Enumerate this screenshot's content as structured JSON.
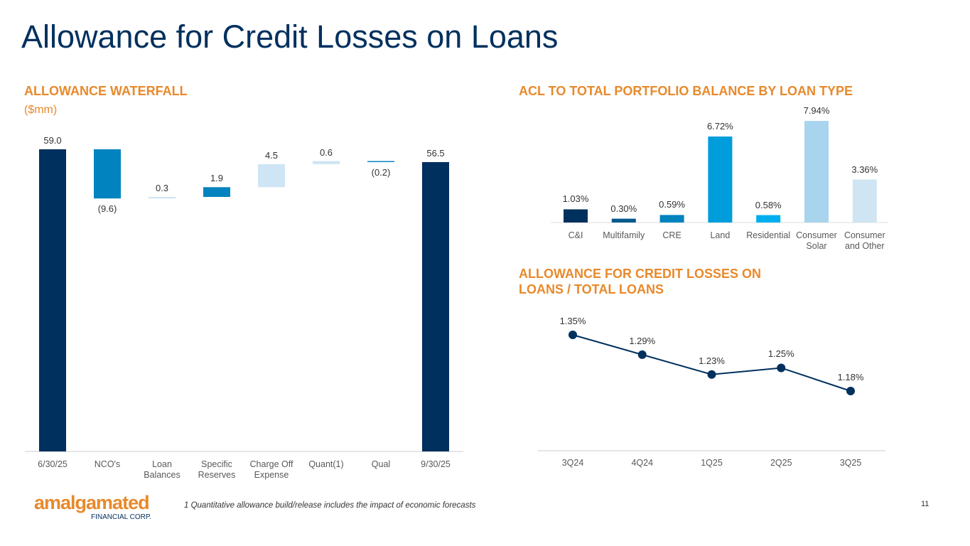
{
  "title": "Allowance for Credit Losses on Loans",
  "footnote": "1 Quantitative allowance build/release includes the impact of economic forecasts",
  "page_number": "11",
  "logo": {
    "name": "amalgamated",
    "tagline": "FINANCIAL CORP."
  },
  "chart_data": [
    {
      "type": "waterfall",
      "title": "ALLOWANCE WATERFALL",
      "subtitle": "($mm)",
      "categories": [
        "6/30/25",
        "NCO's",
        "Loan Balances",
        "Specific Reserves",
        "Charge Off Expense",
        "Quant(1)",
        "Qual",
        "9/30/25"
      ],
      "values": [
        59.0,
        -9.6,
        0.3,
        1.9,
        4.5,
        0.6,
        -0.2,
        56.5
      ],
      "value_labels": [
        "59.0",
        "(9.6)",
        "0.3",
        "1.9",
        "4.5",
        "0.6",
        "(0.2)",
        "56.5"
      ],
      "colors": [
        "#00305e",
        "#0083bf",
        "#cfe5f3",
        "#0083bf",
        "#cfe5f3",
        "#cfe5f3",
        "#0083bf",
        "#00305e"
      ]
    },
    {
      "type": "bar",
      "title": "ACL TO TOTAL PORTFOLIO BALANCE BY LOAN TYPE",
      "categories": [
        "C&I",
        "Multifamily",
        "CRE",
        "Land",
        "Residential",
        "Consumer Solar",
        "Consumer and Other"
      ],
      "values": [
        1.03,
        0.3,
        0.59,
        6.72,
        0.58,
        7.94,
        3.36
      ],
      "value_labels": [
        "1.03%",
        "0.30%",
        "0.59%",
        "6.72%",
        "0.58%",
        "7.94%",
        "3.36%"
      ],
      "colors": [
        "#00305e",
        "#005a8c",
        "#0083bf",
        "#009ddc",
        "#00aeef",
        "#a9d4ee",
        "#cfe5f3"
      ]
    },
    {
      "type": "line",
      "title": "ALLOWANCE FOR CREDIT LOSSES ON LOANS / TOTAL LOANS",
      "categories": [
        "3Q24",
        "4Q24",
        "1Q25",
        "2Q25",
        "3Q25"
      ],
      "values": [
        1.35,
        1.29,
        1.23,
        1.25,
        1.18
      ],
      "value_labels": [
        "1.35%",
        "1.29%",
        "1.23%",
        "1.25%",
        "1.18%"
      ],
      "color": "#00305e"
    }
  ]
}
